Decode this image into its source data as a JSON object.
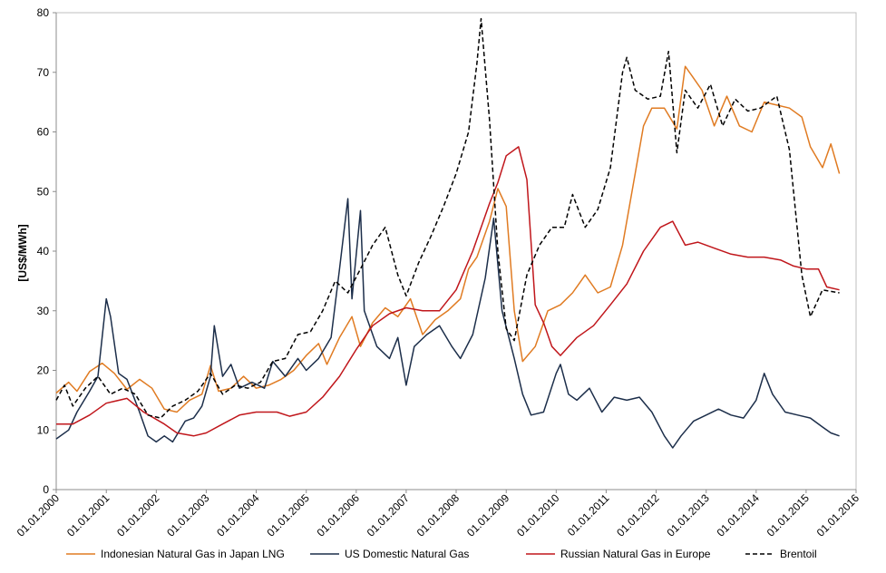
{
  "chart_data": {
    "type": "line",
    "ylabel": "[US$/MWh]",
    "ylim": [
      0,
      80
    ],
    "yticks": [
      "0",
      "10",
      "20",
      "30",
      "40",
      "50",
      "60",
      "70",
      "80"
    ],
    "xlim": [
      "2000-01-01",
      "2016-01-01"
    ],
    "xticks": [
      "01.01.2000",
      "01.01.2001",
      "01.01.2002",
      "01.01.2003",
      "01.01.2004",
      "01.01.2005",
      "01.01.2006",
      "01.01.2007",
      "01.01.2008",
      "01.01.2009",
      "01.01.2010",
      "01.01.2011",
      "01.01.2012",
      "01.01.2013",
      "01.01.2014",
      "01.01.2015",
      "01.01.2016"
    ],
    "grid": false,
    "legend_position": "bottom",
    "series": [
      {
        "name": "Indonesian Natural Gas in Japan LNG",
        "color": "#E07B22",
        "style": "solid",
        "points": [
          [
            "2000-01-01",
            16.2
          ],
          [
            "2000-04-01",
            18.0
          ],
          [
            "2000-06-01",
            16.5
          ],
          [
            "2000-09-01",
            19.8
          ],
          [
            "2000-12-01",
            21.2
          ],
          [
            "2001-03-01",
            19.5
          ],
          [
            "2001-06-01",
            16.8
          ],
          [
            "2001-09-01",
            18.5
          ],
          [
            "2001-12-01",
            17.0
          ],
          [
            "2002-03-01",
            13.5
          ],
          [
            "2002-06-01",
            13.0
          ],
          [
            "2002-09-01",
            15.0
          ],
          [
            "2002-12-01",
            16.0
          ],
          [
            "2003-02-01",
            20.8
          ],
          [
            "2003-04-01",
            16.5
          ],
          [
            "2003-07-01",
            17.0
          ],
          [
            "2003-10-01",
            19.0
          ],
          [
            "2004-01-01",
            17.0
          ],
          [
            "2004-04-01",
            17.5
          ],
          [
            "2004-07-01",
            18.5
          ],
          [
            "2004-10-01",
            20.0
          ],
          [
            "2005-01-01",
            22.5
          ],
          [
            "2005-04-01",
            24.5
          ],
          [
            "2005-06-01",
            21.0
          ],
          [
            "2005-09-01",
            25.5
          ],
          [
            "2005-12-01",
            29.0
          ],
          [
            "2006-02-01",
            24.0
          ],
          [
            "2006-05-01",
            28.0
          ],
          [
            "2006-08-01",
            30.5
          ],
          [
            "2006-11-01",
            29.0
          ],
          [
            "2007-02-01",
            32.0
          ],
          [
            "2007-05-01",
            26.0
          ],
          [
            "2007-08-01",
            28.5
          ],
          [
            "2007-11-01",
            30.0
          ],
          [
            "2008-02-01",
            32.0
          ],
          [
            "2008-04-01",
            37.0
          ],
          [
            "2008-06-01",
            39.0
          ],
          [
            "2008-09-01",
            45.0
          ],
          [
            "2008-11-01",
            50.5
          ],
          [
            "2009-01-01",
            47.5
          ],
          [
            "2009-03-01",
            30.0
          ],
          [
            "2009-05-01",
            21.5
          ],
          [
            "2009-08-01",
            24.0
          ],
          [
            "2009-11-01",
            30.0
          ],
          [
            "2010-02-01",
            31.0
          ],
          [
            "2010-05-01",
            33.0
          ],
          [
            "2010-08-01",
            36.0
          ],
          [
            "2010-11-01",
            33.0
          ],
          [
            "2011-02-01",
            34.0
          ],
          [
            "2011-05-01",
            41.0
          ],
          [
            "2011-08-01",
            53.0
          ],
          [
            "2011-10-01",
            61.0
          ],
          [
            "2011-12-01",
            64.0
          ],
          [
            "2012-03-01",
            64.0
          ],
          [
            "2012-06-01",
            60.5
          ],
          [
            "2012-08-01",
            71.0
          ],
          [
            "2012-10-01",
            69.0
          ],
          [
            "2012-12-01",
            67.0
          ],
          [
            "2013-03-01",
            61.0
          ],
          [
            "2013-06-01",
            66.0
          ],
          [
            "2013-09-01",
            61.0
          ],
          [
            "2013-12-01",
            60.0
          ],
          [
            "2014-03-01",
            65.0
          ],
          [
            "2014-06-01",
            64.5
          ],
          [
            "2014-09-01",
            64.0
          ],
          [
            "2014-12-01",
            62.5
          ],
          [
            "2015-02-01",
            57.5
          ],
          [
            "2015-05-01",
            54.0
          ],
          [
            "2015-07-01",
            58.0
          ],
          [
            "2015-09-01",
            53.0
          ]
        ]
      },
      {
        "name": "US Domestic Natural Gas",
        "color": "#1C2E4A",
        "style": "solid",
        "points": [
          [
            "2000-01-01",
            8.5
          ],
          [
            "2000-04-01",
            10.0
          ],
          [
            "2000-06-01",
            13.0
          ],
          [
            "2000-09-01",
            16.5
          ],
          [
            "2000-11-01",
            19.0
          ],
          [
            "2001-01-01",
            32.0
          ],
          [
            "2001-02-01",
            29.0
          ],
          [
            "2001-04-01",
            19.5
          ],
          [
            "2001-06-01",
            18.5
          ],
          [
            "2001-09-01",
            13.0
          ],
          [
            "2001-11-01",
            9.0
          ],
          [
            "2002-01-01",
            8.0
          ],
          [
            "2002-03-01",
            9.0
          ],
          [
            "2002-05-01",
            8.0
          ],
          [
            "2002-08-01",
            11.5
          ],
          [
            "2002-10-01",
            12.0
          ],
          [
            "2002-12-01",
            14.0
          ],
          [
            "2003-02-01",
            19.0
          ],
          [
            "2003-03-01",
            27.5
          ],
          [
            "2003-05-01",
            19.0
          ],
          [
            "2003-07-01",
            21.0
          ],
          [
            "2003-09-01",
            17.0
          ],
          [
            "2003-12-01",
            18.0
          ],
          [
            "2004-03-01",
            17.0
          ],
          [
            "2004-05-01",
            21.5
          ],
          [
            "2004-08-01",
            19.0
          ],
          [
            "2004-11-01",
            22.0
          ],
          [
            "2005-01-01",
            20.0
          ],
          [
            "2005-04-01",
            22.0
          ],
          [
            "2005-07-01",
            25.5
          ],
          [
            "2005-09-01",
            37.0
          ],
          [
            "2005-11-01",
            48.8
          ],
          [
            "2005-12-01",
            32.0
          ],
          [
            "2006-02-01",
            46.8
          ],
          [
            "2006-03-01",
            30.0
          ],
          [
            "2006-06-01",
            24.0
          ],
          [
            "2006-09-01",
            22.0
          ],
          [
            "2006-11-01",
            25.5
          ],
          [
            "2007-01-01",
            17.5
          ],
          [
            "2007-03-01",
            24.0
          ],
          [
            "2007-06-01",
            26.0
          ],
          [
            "2007-09-01",
            27.5
          ],
          [
            "2007-12-01",
            24.0
          ],
          [
            "2008-02-01",
            22.0
          ],
          [
            "2008-05-01",
            26.0
          ],
          [
            "2008-08-01",
            35.5
          ],
          [
            "2008-10-01",
            45.5
          ],
          [
            "2008-12-01",
            30.0
          ],
          [
            "2009-03-01",
            22.0
          ],
          [
            "2009-05-01",
            16.0
          ],
          [
            "2009-07-01",
            12.5
          ],
          [
            "2009-10-01",
            13.0
          ],
          [
            "2010-01-01",
            19.5
          ],
          [
            "2010-02-01",
            21.0
          ],
          [
            "2010-04-01",
            16.0
          ],
          [
            "2010-06-01",
            15.0
          ],
          [
            "2010-09-01",
            17.0
          ],
          [
            "2010-12-01",
            13.0
          ],
          [
            "2011-03-01",
            15.5
          ],
          [
            "2011-06-01",
            15.0
          ],
          [
            "2011-09-01",
            15.5
          ],
          [
            "2011-12-01",
            13.0
          ],
          [
            "2012-03-01",
            9.0
          ],
          [
            "2012-05-01",
            7.0
          ],
          [
            "2012-07-01",
            9.0
          ],
          [
            "2012-10-01",
            11.5
          ],
          [
            "2013-01-01",
            12.5
          ],
          [
            "2013-04-01",
            13.5
          ],
          [
            "2013-07-01",
            12.5
          ],
          [
            "2013-10-01",
            12.0
          ],
          [
            "2014-01-01",
            15.0
          ],
          [
            "2014-03-01",
            19.5
          ],
          [
            "2014-05-01",
            16.0
          ],
          [
            "2014-08-01",
            13.0
          ],
          [
            "2014-11-01",
            12.5
          ],
          [
            "2015-02-01",
            12.0
          ],
          [
            "2015-05-01",
            10.5
          ],
          [
            "2015-07-01",
            9.5
          ],
          [
            "2015-09-01",
            9.0
          ]
        ]
      },
      {
        "name": "Russian Natural Gas in Europe",
        "color": "#C0161B",
        "style": "solid",
        "points": [
          [
            "2000-01-01",
            11.0
          ],
          [
            "2000-05-01",
            11.0
          ],
          [
            "2000-09-01",
            12.5
          ],
          [
            "2001-01-01",
            14.5
          ],
          [
            "2001-06-01",
            15.3
          ],
          [
            "2001-10-01",
            13.0
          ],
          [
            "2002-03-01",
            11.0
          ],
          [
            "2002-06-01",
            9.5
          ],
          [
            "2002-10-01",
            9.0
          ],
          [
            "2003-01-01",
            9.5
          ],
          [
            "2003-05-01",
            11.0
          ],
          [
            "2003-09-01",
            12.5
          ],
          [
            "2004-01-01",
            13.0
          ],
          [
            "2004-06-01",
            13.0
          ],
          [
            "2004-09-01",
            12.3
          ],
          [
            "2005-01-01",
            13.0
          ],
          [
            "2005-05-01",
            15.5
          ],
          [
            "2005-09-01",
            19.0
          ],
          [
            "2006-01-01",
            23.5
          ],
          [
            "2006-05-01",
            27.5
          ],
          [
            "2006-09-01",
            29.5
          ],
          [
            "2007-01-01",
            30.5
          ],
          [
            "2007-05-01",
            30.0
          ],
          [
            "2007-09-01",
            30.0
          ],
          [
            "2008-01-01",
            33.5
          ],
          [
            "2008-05-01",
            40.0
          ],
          [
            "2008-09-01",
            48.0
          ],
          [
            "2008-11-01",
            51.5
          ],
          [
            "2009-01-01",
            56.0
          ],
          [
            "2009-04-01",
            57.5
          ],
          [
            "2009-06-01",
            52.0
          ],
          [
            "2009-08-01",
            31.0
          ],
          [
            "2009-10-01",
            28.0
          ],
          [
            "2009-12-01",
            24.0
          ],
          [
            "2010-02-01",
            22.5
          ],
          [
            "2010-06-01",
            25.5
          ],
          [
            "2010-10-01",
            27.5
          ],
          [
            "2011-02-01",
            31.0
          ],
          [
            "2011-06-01",
            34.5
          ],
          [
            "2011-10-01",
            40.0
          ],
          [
            "2012-02-01",
            44.0
          ],
          [
            "2012-05-01",
            45.0
          ],
          [
            "2012-08-01",
            41.0
          ],
          [
            "2012-11-01",
            41.5
          ],
          [
            "2013-03-01",
            40.5
          ],
          [
            "2013-07-01",
            39.5
          ],
          [
            "2013-11-01",
            39.0
          ],
          [
            "2014-03-01",
            39.0
          ],
          [
            "2014-07-01",
            38.5
          ],
          [
            "2014-10-01",
            37.5
          ],
          [
            "2015-01-01",
            37.0
          ],
          [
            "2015-04-01",
            37.0
          ],
          [
            "2015-06-01",
            34.0
          ],
          [
            "2015-09-01",
            33.5
          ]
        ]
      },
      {
        "name": "Brentoil",
        "color": "#000000",
        "style": "dashed",
        "points": [
          [
            "2000-01-01",
            15.0
          ],
          [
            "2000-03-01",
            17.5
          ],
          [
            "2000-05-01",
            14.0
          ],
          [
            "2000-08-01",
            17.0
          ],
          [
            "2000-11-01",
            19.0
          ],
          [
            "2001-02-01",
            16.0
          ],
          [
            "2001-05-01",
            17.0
          ],
          [
            "2001-08-01",
            16.0
          ],
          [
            "2001-11-01",
            12.5
          ],
          [
            "2002-02-01",
            12.0
          ],
          [
            "2002-05-01",
            14.0
          ],
          [
            "2002-08-01",
            15.0
          ],
          [
            "2002-11-01",
            16.5
          ],
          [
            "2003-02-01",
            19.5
          ],
          [
            "2003-05-01",
            16.0
          ],
          [
            "2003-08-01",
            17.5
          ],
          [
            "2003-11-01",
            17.0
          ],
          [
            "2004-02-01",
            18.0
          ],
          [
            "2004-05-01",
            21.5
          ],
          [
            "2004-08-01",
            22.0
          ],
          [
            "2004-11-01",
            26.0
          ],
          [
            "2005-02-01",
            26.5
          ],
          [
            "2005-05-01",
            30.0
          ],
          [
            "2005-08-01",
            35.0
          ],
          [
            "2005-11-01",
            33.0
          ],
          [
            "2006-02-01",
            37.0
          ],
          [
            "2006-05-01",
            41.0
          ],
          [
            "2006-08-01",
            44.0
          ],
          [
            "2006-11-01",
            36.0
          ],
          [
            "2007-01-01",
            32.5
          ],
          [
            "2007-04-01",
            38.0
          ],
          [
            "2007-07-01",
            42.5
          ],
          [
            "2007-10-01",
            47.5
          ],
          [
            "2008-01-01",
            53.0
          ],
          [
            "2008-04-01",
            60.0
          ],
          [
            "2008-06-01",
            71.5
          ],
          [
            "2008-07-01",
            79.0
          ],
          [
            "2008-09-01",
            62.0
          ],
          [
            "2008-11-01",
            40.0
          ],
          [
            "2009-01-01",
            27.0
          ],
          [
            "2009-03-01",
            25.0
          ],
          [
            "2009-06-01",
            36.0
          ],
          [
            "2009-09-01",
            41.0
          ],
          [
            "2009-12-01",
            44.0
          ],
          [
            "2010-03-01",
            44.0
          ],
          [
            "2010-05-01",
            49.5
          ],
          [
            "2010-08-01",
            44.0
          ],
          [
            "2010-11-01",
            47.0
          ],
          [
            "2011-02-01",
            54.0
          ],
          [
            "2011-05-01",
            70.0
          ],
          [
            "2011-06-01",
            72.5
          ],
          [
            "2011-08-01",
            67.0
          ],
          [
            "2011-11-01",
            65.5
          ],
          [
            "2012-02-01",
            66.0
          ],
          [
            "2012-04-01",
            73.5
          ],
          [
            "2012-06-01",
            56.5
          ],
          [
            "2012-08-01",
            67.0
          ],
          [
            "2012-11-01",
            64.0
          ],
          [
            "2013-02-01",
            68.0
          ],
          [
            "2013-05-01",
            61.0
          ],
          [
            "2013-08-01",
            65.5
          ],
          [
            "2013-11-01",
            63.5
          ],
          [
            "2014-02-01",
            64.0
          ],
          [
            "2014-06-01",
            66.0
          ],
          [
            "2014-09-01",
            57.0
          ],
          [
            "2014-12-01",
            36.0
          ],
          [
            "2015-02-01",
            29.0
          ],
          [
            "2015-05-01",
            33.5
          ],
          [
            "2015-09-01",
            33.0
          ]
        ]
      }
    ]
  }
}
